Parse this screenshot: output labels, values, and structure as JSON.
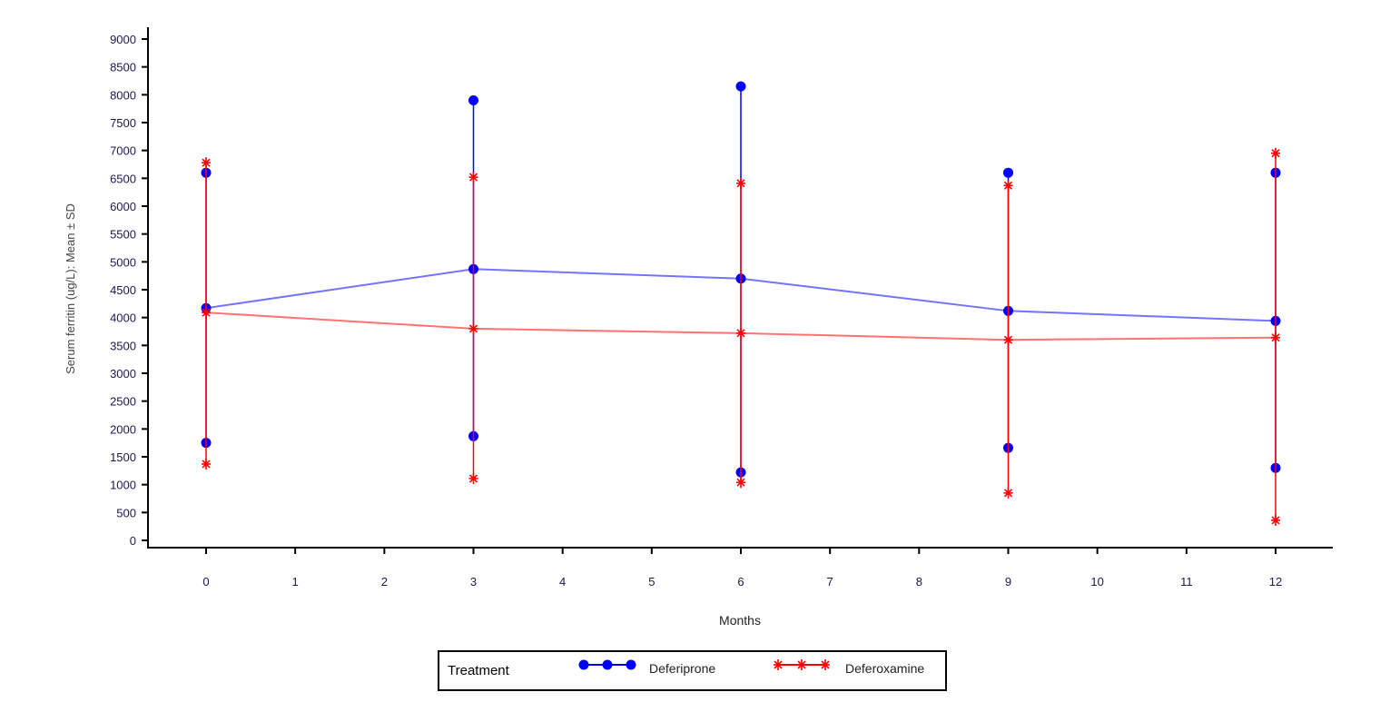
{
  "chart_data": {
    "type": "line",
    "title": "",
    "xlabel": "Months",
    "ylabel": "Serum ferritin (ug/L): Mean ± SD",
    "xlim": [
      -0.7,
      12.6
    ],
    "ylim": [
      0,
      9000
    ],
    "xticks": [
      0,
      1,
      2,
      3,
      4,
      5,
      6,
      7,
      8,
      9,
      10,
      11,
      12
    ],
    "yticks": [
      0,
      500,
      1000,
      1500,
      2000,
      2500,
      3000,
      3500,
      4000,
      4500,
      5000,
      5500,
      6000,
      6500,
      7000,
      7500,
      8000,
      8500,
      9000
    ],
    "grid": false,
    "legend_placement": "bottom",
    "legend_title": "Treatment",
    "series": [
      {
        "name": "Deferiprone",
        "color": "#0000ff",
        "marker": "circle",
        "x": [
          0,
          3,
          6,
          9,
          12
        ],
        "mean": [
          4170,
          4870,
          4700,
          4120,
          3940
        ],
        "upper": [
          6600,
          7900,
          8150,
          6600,
          6600
        ],
        "lower": [
          1750,
          1870,
          1220,
          1660,
          1300
        ]
      },
      {
        "name": "Deferoxamine",
        "color": "#ff0000",
        "marker": "asterisk",
        "x": [
          0,
          3,
          6,
          9,
          12
        ],
        "mean": [
          4090,
          3800,
          3720,
          3600,
          3640
        ],
        "upper": [
          6780,
          6520,
          6410,
          6370,
          6950
        ],
        "lower": [
          1370,
          1110,
          1040,
          850,
          360
        ]
      }
    ]
  }
}
